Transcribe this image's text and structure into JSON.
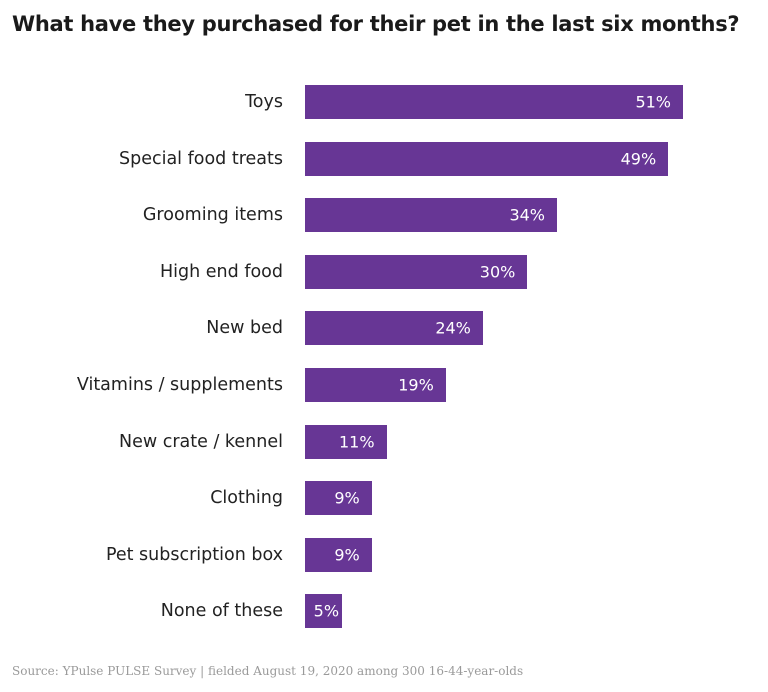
{
  "chart_data": {
    "type": "bar",
    "orientation": "horizontal",
    "title": "What have they  purchased for their pet in the last six months?",
    "categories": [
      "Toys",
      "Special food treats",
      "Grooming items",
      "High end food",
      "New bed",
      "Vitamins / supplements",
      "New crate / kennel",
      "Clothing",
      "Pet subscription box",
      "None of these"
    ],
    "values": [
      51,
      49,
      34,
      30,
      24,
      19,
      11,
      9,
      9,
      5
    ],
    "data_labels": [
      "51%",
      "49%",
      "34%",
      "30%",
      "24%",
      "19%",
      "11%",
      "9%",
      "9%",
      "5%"
    ],
    "xlim": [
      0,
      51
    ],
    "grid": false,
    "bar_color": "#673695"
  },
  "source": "Source: YPulse PULSE Survey | fielded August 19, 2020 among 300 16-44-year-olds"
}
